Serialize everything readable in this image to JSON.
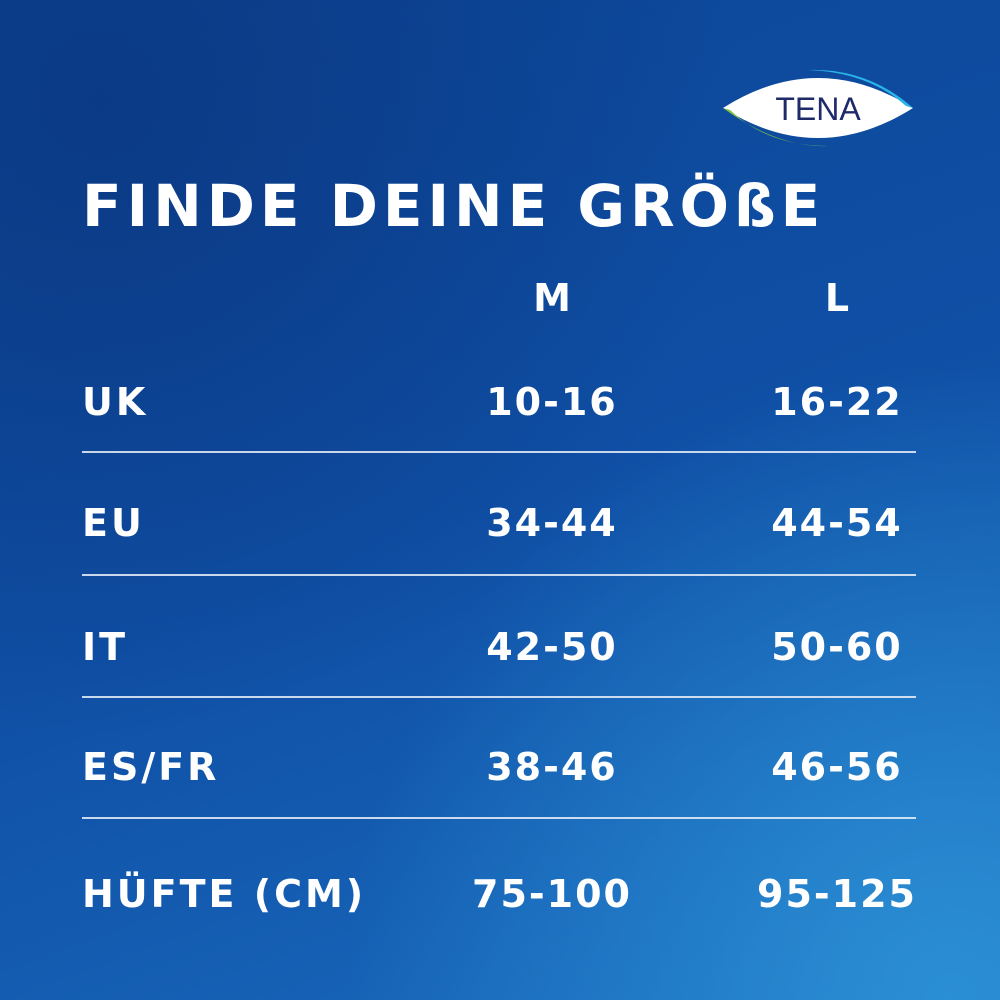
{
  "logo": {
    "text": "TENA",
    "colors": {
      "ring_green": "#7cc242",
      "ring_blue": "#29b5e8",
      "text": "#1f2a6b"
    }
  },
  "title": "FINDE DEINE GRÖßE",
  "columns": [
    "M",
    "L"
  ],
  "rows": [
    {
      "label": "UK",
      "m": "10-16",
      "l": "16-22"
    },
    {
      "label": "EU",
      "m": "34-44",
      "l": "44-54"
    },
    {
      "label": "IT",
      "m": "42-50",
      "l": "50-60"
    },
    {
      "label": "ES/FR",
      "m": "38-46",
      "l": "46-56"
    },
    {
      "label": "HÜFTE (CM)",
      "m": "75-100",
      "l": "95-125"
    }
  ]
}
